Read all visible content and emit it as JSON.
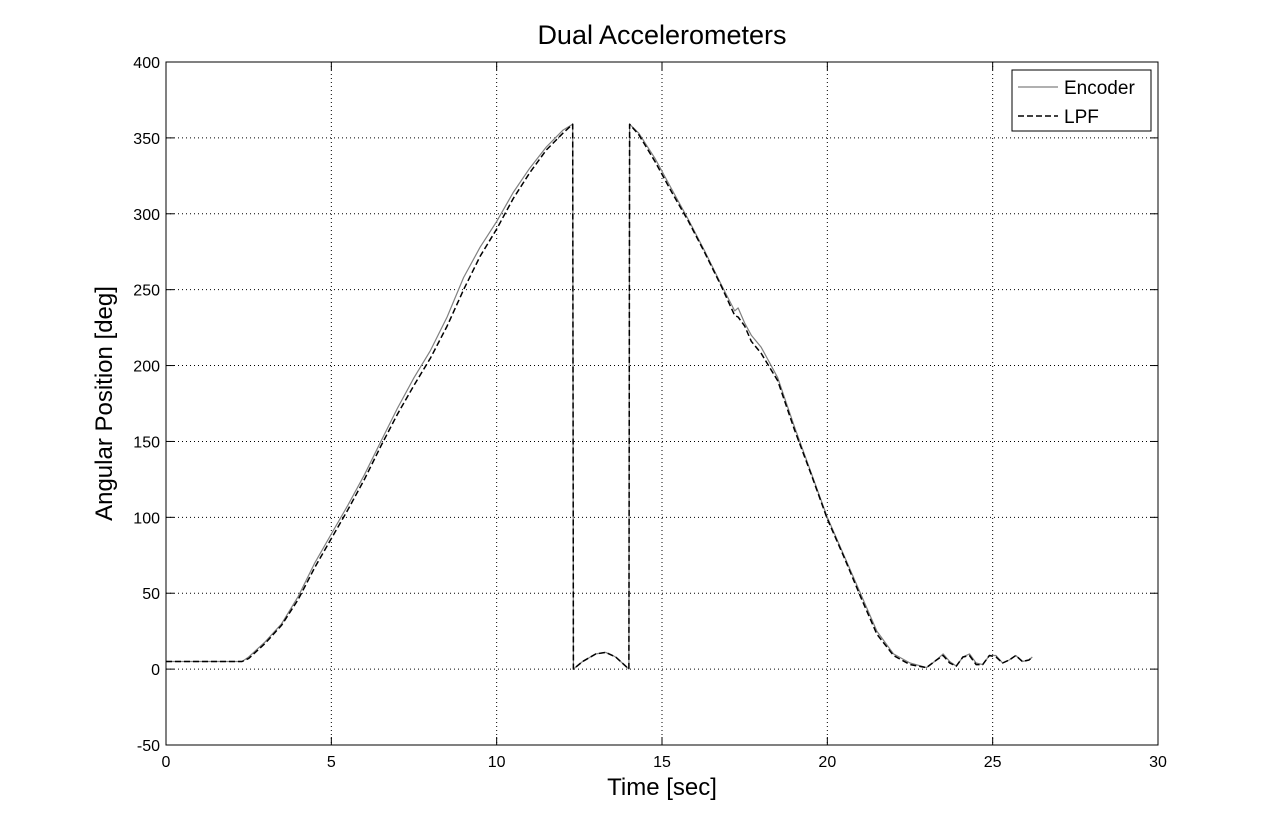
{
  "chart_data": {
    "type": "line",
    "title": "Dual Accelerometers",
    "xlabel": "Time [sec]",
    "ylabel": "Angular Position [deg]",
    "xlim": [
      0,
      30
    ],
    "ylim": [
      -50,
      400
    ],
    "xticks": [
      0,
      5,
      10,
      15,
      20,
      25,
      30
    ],
    "yticks": [
      -50,
      0,
      50,
      100,
      150,
      200,
      250,
      300,
      350,
      400
    ],
    "xtick_labels": [
      "0",
      "5",
      "10",
      "15",
      "20",
      "25",
      "30"
    ],
    "ytick_labels": [
      "-50",
      "0",
      "50",
      "100",
      "150",
      "200",
      "250",
      "300",
      "350",
      "400"
    ],
    "grid": true,
    "legend_position": "top-right",
    "series": [
      {
        "name": "Encoder",
        "color": "#808080",
        "style": "solid",
        "x": [
          0,
          1,
          2,
          2.3,
          2.5,
          3,
          3.5,
          4,
          4.5,
          5,
          5.5,
          6,
          6.5,
          7,
          7.5,
          8,
          8.5,
          9,
          9.5,
          10,
          10.5,
          11,
          11.5,
          12,
          12.3,
          12.32,
          12.6,
          13,
          13.3,
          13.6,
          13.9,
          14.0,
          14.02,
          14.3,
          14.8,
          15.3,
          15.8,
          16.3,
          16.8,
          17.2,
          17.3,
          17.5,
          17.7,
          18,
          18.5,
          19,
          19.5,
          20,
          20.5,
          21,
          21.5,
          22,
          22.5,
          23,
          23.3,
          23.5,
          23.7,
          23.9,
          24.1,
          24.3,
          24.5,
          24.7,
          24.9,
          25.1,
          25.3,
          25.5,
          25.7,
          25.9,
          26.1,
          26.2
        ],
        "y": [
          5,
          5,
          5,
          5,
          8,
          18,
          30,
          48,
          70,
          89,
          108,
          128,
          150,
          172,
          192,
          210,
          232,
          258,
          278,
          295,
          314,
          330,
          344,
          355,
          359,
          0,
          5,
          10,
          11,
          8,
          2,
          0,
          359,
          353,
          336,
          316,
          296,
          275,
          253,
          236,
          238,
          228,
          220,
          212,
          192,
          160,
          130,
          100,
          75,
          50,
          25,
          10,
          4,
          1,
          6,
          10,
          5,
          2,
          8,
          10,
          4,
          3,
          9,
          9,
          4,
          6,
          9,
          5,
          6,
          8
        ]
      },
      {
        "name": "LPF",
        "color": "#000000",
        "style": "dashed",
        "x": [
          0,
          1,
          2,
          2.3,
          2.5,
          3,
          3.5,
          4,
          4.5,
          5,
          5.5,
          6,
          6.5,
          7,
          7.5,
          8,
          8.5,
          9,
          9.5,
          10,
          10.5,
          11,
          11.5,
          12,
          12.3,
          12.32,
          12.6,
          13,
          13.3,
          13.6,
          13.9,
          14.0,
          14.02,
          14.3,
          14.8,
          15.3,
          15.8,
          16.3,
          16.8,
          17.2,
          17.3,
          17.5,
          17.7,
          18,
          18.5,
          19,
          19.5,
          20,
          20.5,
          21,
          21.5,
          22,
          22.5,
          23,
          23.3,
          23.5,
          23.7,
          23.9,
          24.1,
          24.3,
          24.5,
          24.7,
          24.9,
          25.1,
          25.3,
          25.5,
          25.7,
          25.9,
          26.1,
          26.2
        ],
        "y": [
          5,
          5,
          5,
          5,
          7,
          17,
          29,
          46,
          67,
          86,
          105,
          125,
          147,
          168,
          187,
          205,
          226,
          250,
          272,
          290,
          310,
          327,
          342,
          353,
          359,
          0,
          5,
          10,
          11,
          8,
          2,
          0,
          359,
          352,
          334,
          314,
          295,
          274,
          252,
          233,
          232,
          226,
          216,
          208,
          190,
          158,
          129,
          99,
          74,
          48,
          23,
          9,
          3,
          1,
          6,
          9,
          4,
          2,
          8,
          9,
          3,
          3,
          9,
          8,
          4,
          6,
          9,
          5,
          6,
          8
        ]
      }
    ]
  }
}
